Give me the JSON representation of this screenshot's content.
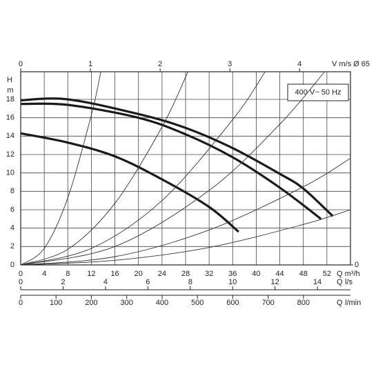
{
  "chart_data": {
    "type": "line",
    "y_label_top": "H",
    "y_label_unit": "m",
    "x_label": "Q m³/h",
    "legend_text": "400 V~ 50 Hz",
    "xlim": [
      0,
      56
    ],
    "xticks": [
      0,
      4,
      8,
      12,
      16,
      20,
      24,
      28,
      32,
      36,
      40,
      44,
      48,
      52
    ],
    "ylim": [
      0,
      21
    ],
    "yticks": [
      0,
      2,
      4,
      6,
      8,
      10,
      12,
      14,
      16,
      18
    ],
    "y2lim": [
      0,
      21
    ],
    "y2ticks": [
      0
    ],
    "grid": true,
    "top_axis": {
      "label": "V m/s Ø 65",
      "lim": [
        0,
        4.73
      ],
      "ticks": [
        0,
        1,
        2,
        3,
        4
      ]
    },
    "bottom_axes": [
      {
        "label_q": "Q",
        "label_unit": "l/s",
        "lim": [
          0,
          15.56
        ],
        "ticks": [
          0,
          2,
          4,
          6,
          8,
          10,
          12,
          14
        ]
      },
      {
        "label_q": "Q",
        "label_unit": "l/min",
        "lim": [
          0,
          933
        ],
        "ticks": [
          0,
          100,
          200,
          300,
          400,
          500,
          600,
          700,
          800
        ]
      }
    ],
    "series": [
      {
        "color": "#1a1a1a",
        "width": 3.2,
        "x": [
          0,
          8,
          20,
          28,
          36,
          44,
          48,
          53
        ],
        "values": [
          17.9,
          18.0,
          16.4,
          14.9,
          12.7,
          9.9,
          8.3,
          5.3
        ]
      },
      {
        "color": "#1a1a1a",
        "width": 3.2,
        "x": [
          0,
          8,
          20,
          28,
          36,
          44,
          51
        ],
        "values": [
          17.5,
          17.4,
          16.0,
          14.2,
          11.7,
          8.4,
          5.0
        ]
      },
      {
        "color": "#1a1a1a",
        "width": 3.2,
        "x": [
          0,
          8,
          16,
          24,
          32,
          37
        ],
        "values": [
          14.3,
          13.3,
          11.8,
          9.3,
          6.3,
          3.6
        ]
      },
      {
        "color": "#333333",
        "width": 0.9,
        "x": [
          0,
          4,
          8,
          12,
          13.6
        ],
        "values": [
          0,
          1.8,
          7.3,
          16.3,
          21
        ]
      },
      {
        "color": "#333333",
        "width": 0.9,
        "x": [
          0,
          8,
          16,
          24,
          28.4
        ],
        "values": [
          0,
          1.7,
          6.7,
          15,
          21
        ]
      },
      {
        "color": "#333333",
        "width": 0.9,
        "x": [
          0,
          12,
          24,
          36,
          41.5
        ],
        "values": [
          0,
          1.8,
          7,
          15.8,
          21
        ]
      },
      {
        "color": "#333333",
        "width": 0.9,
        "x": [
          0,
          16,
          32,
          44,
          51.6
        ],
        "values": [
          0,
          2,
          8.1,
          15.3,
          21
        ]
      },
      {
        "color": "#333333",
        "width": 0.9,
        "x": [
          0,
          16,
          32,
          48,
          56
        ],
        "values": [
          0,
          0.9,
          3.8,
          8.5,
          11.6
        ]
      },
      {
        "color": "#333333",
        "width": 0.9,
        "x": [
          0,
          16,
          32,
          48,
          56
        ],
        "values": [
          0,
          0.5,
          1.9,
          4.4,
          6
        ]
      }
    ]
  }
}
